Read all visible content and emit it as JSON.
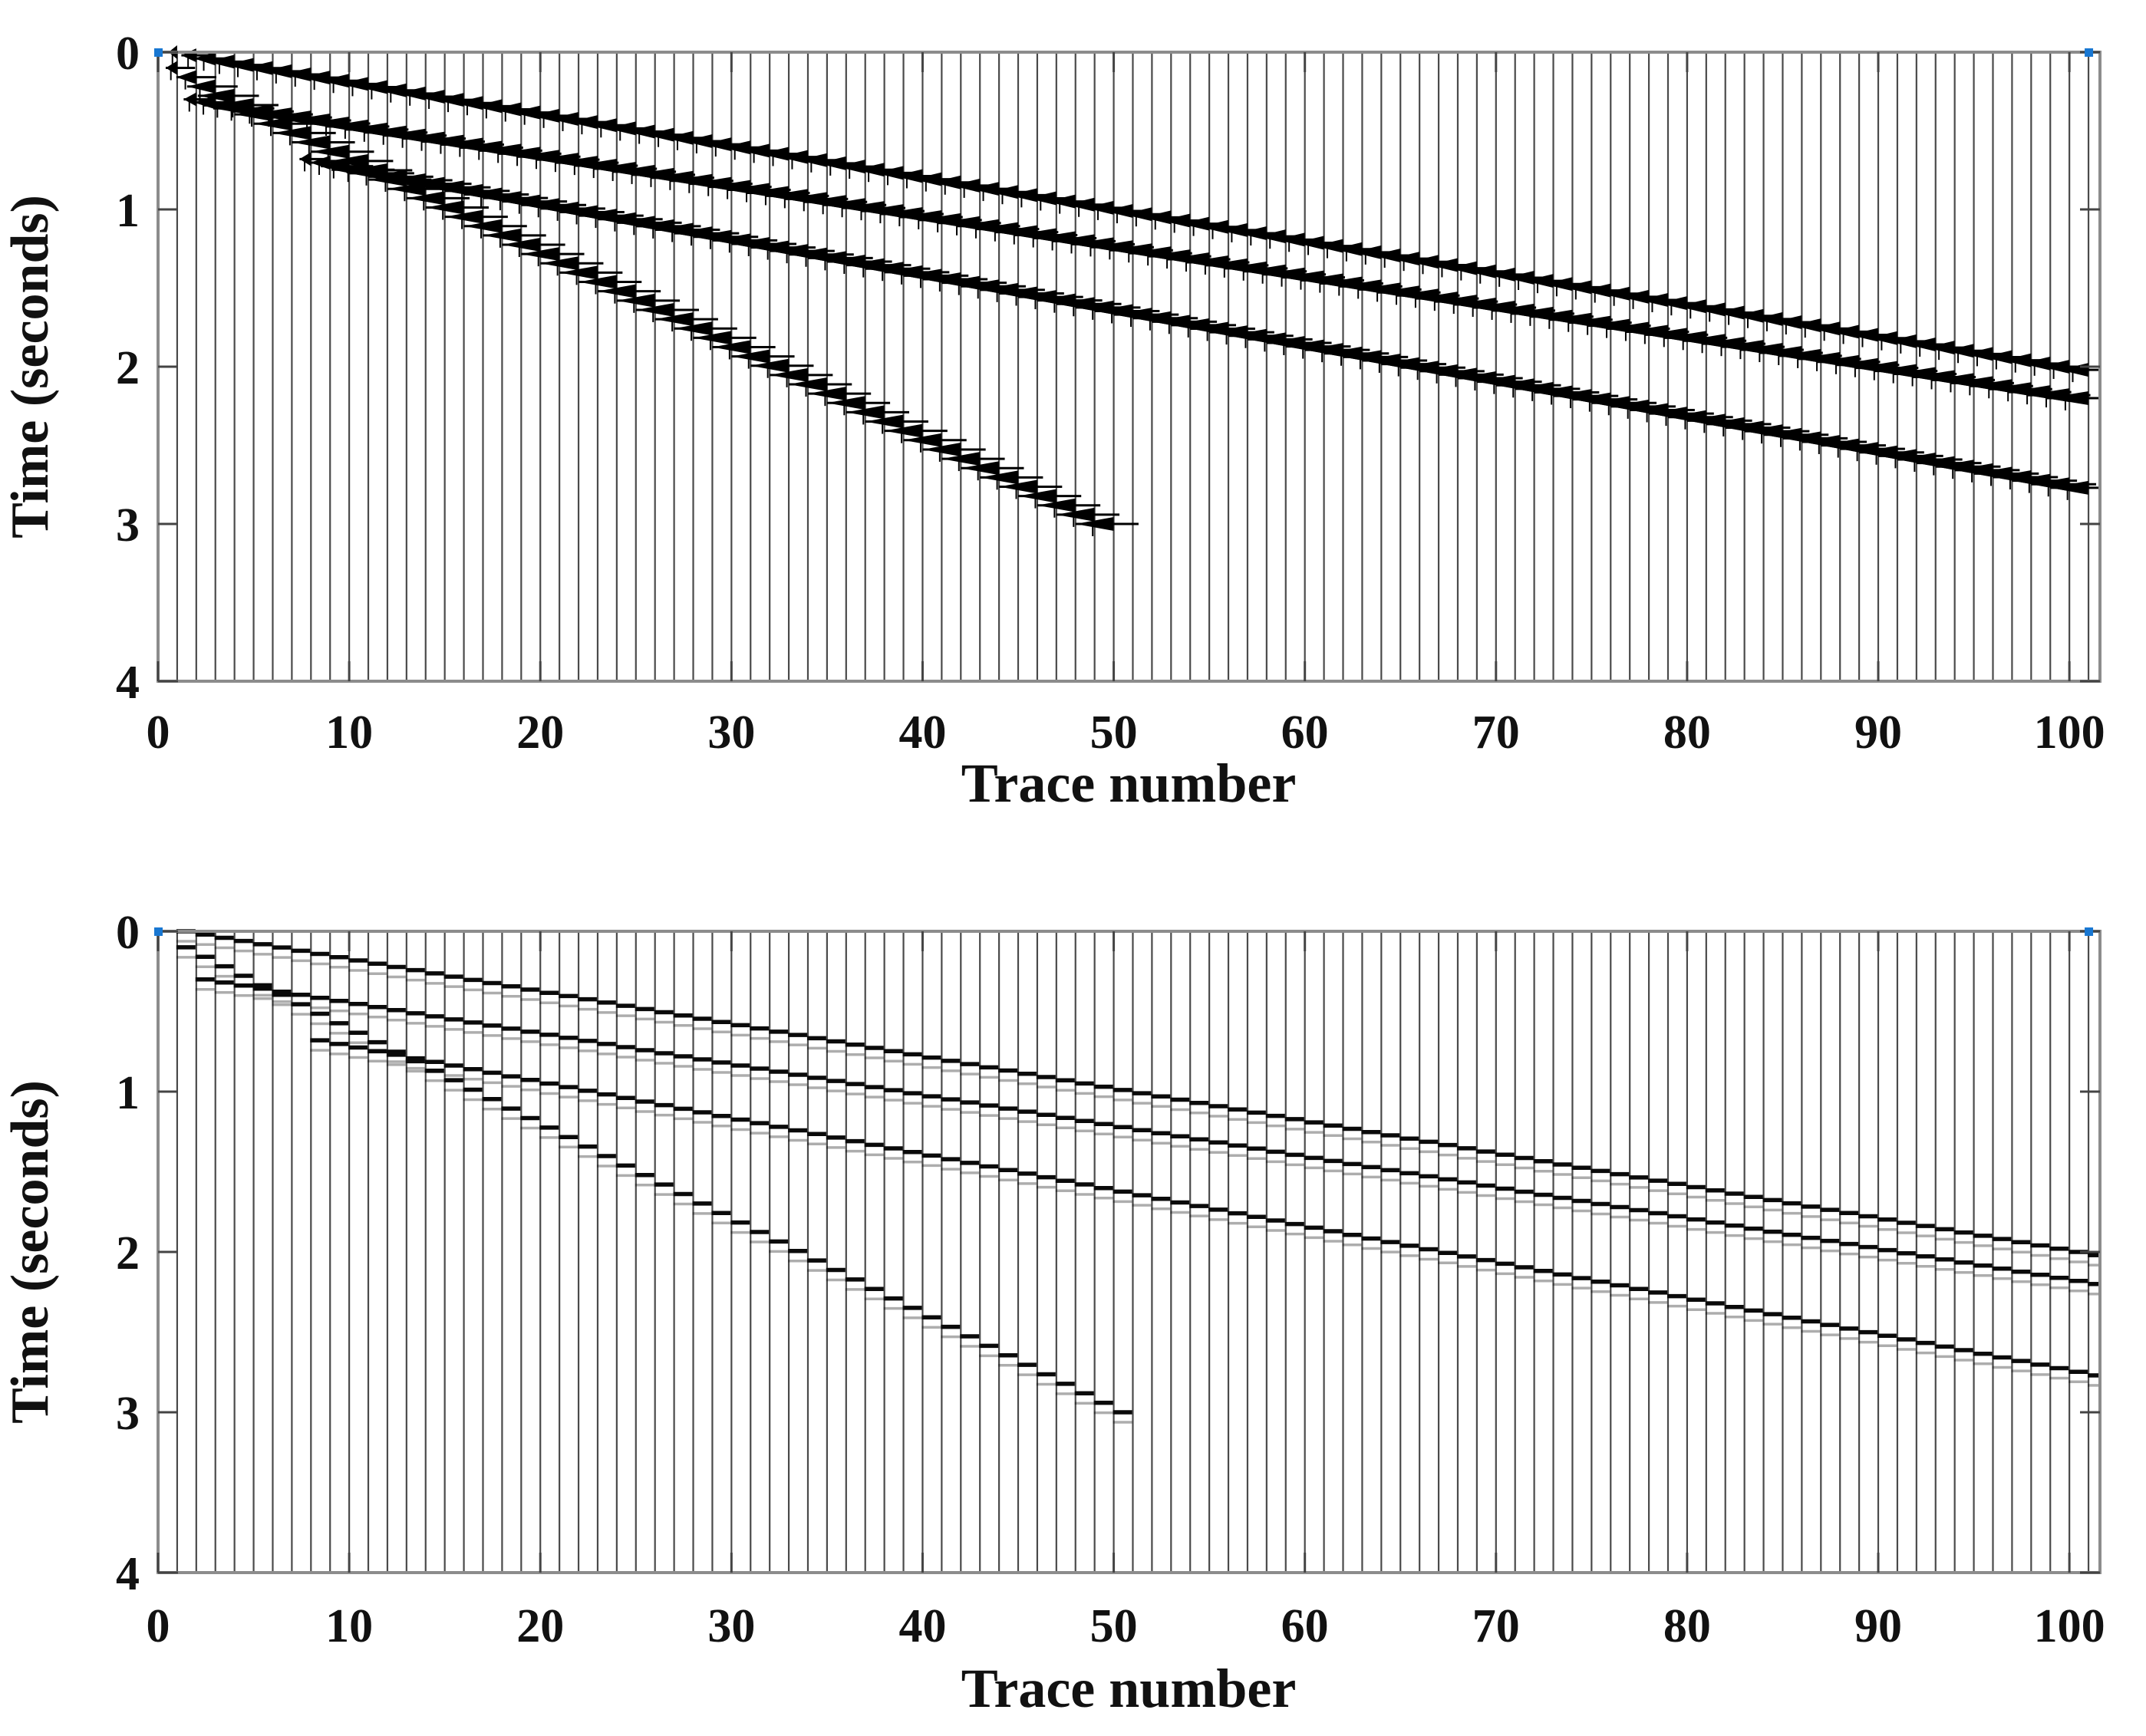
{
  "figure": {
    "background": "#ffffff",
    "axes_box_color": "#8c8c8c",
    "trace_line_color": "#4a4a4a",
    "wiggle_color": "#000000",
    "tick_color": "#444444",
    "corner_marker_color": "#1877d2",
    "corner_marker_traces": [
      1,
      101
    ]
  },
  "chart_data": [
    {
      "type": "line",
      "variant": "seismic-wiggle-filled-traces",
      "title": "",
      "xlabel": "Trace number",
      "ylabel": "Time (seconds)",
      "xlim": [
        0,
        101.6
      ],
      "ylim": [
        0,
        4
      ],
      "y_axis_downward": true,
      "n_traces": 101,
      "xticks": [
        0,
        10,
        20,
        30,
        40,
        50,
        60,
        70,
        80,
        90,
        100
      ],
      "yticks": [
        0,
        1,
        2,
        3,
        4
      ],
      "grid": false,
      "legend": "none",
      "events": [
        {
          "name": "linear-event-1",
          "trace_start": 1,
          "time_start": 0.0,
          "trace_end": 101,
          "time_end": 2.02,
          "amplitude": 1.5,
          "whisker_right": 0.9
        },
        {
          "name": "linear-event-2",
          "trace_start": 2,
          "time_start": 0.3,
          "trace_end": 101,
          "time_end": 2.2,
          "amplitude": 2.2,
          "whisker_right": 1.1
        },
        {
          "name": "linear-event-3",
          "trace_start": 8,
          "time_start": 0.68,
          "trace_end": 101,
          "time_end": 2.77,
          "amplitude": 2.0,
          "whisker_right": 1.4
        },
        {
          "name": "linear-event-4-steep",
          "trace_start": 1,
          "time_start": 0.1,
          "trace_end": 50,
          "time_end": 3.0,
          "amplitude": 2.0,
          "whisker_right": 1.3
        }
      ]
    },
    {
      "type": "line",
      "variant": "seismic-stairstep-dashes",
      "title": "",
      "xlabel": "Trace number",
      "ylabel": "Time (seconds)",
      "xlim": [
        0,
        101.6
      ],
      "ylim": [
        0,
        4
      ],
      "y_axis_downward": true,
      "n_traces": 101,
      "xticks": [
        0,
        10,
        20,
        30,
        40,
        50,
        60,
        70,
        80,
        90,
        100
      ],
      "yticks": [
        0,
        1,
        2,
        3,
        4
      ],
      "grid": false,
      "legend": "none",
      "events": [
        {
          "name": "linear-event-1",
          "trace_start": 1,
          "time_start": 0.0,
          "trace_end": 101,
          "time_end": 2.02
        },
        {
          "name": "linear-event-2",
          "trace_start": 2,
          "time_start": 0.3,
          "trace_end": 101,
          "time_end": 2.2
        },
        {
          "name": "linear-event-3",
          "trace_start": 8,
          "time_start": 0.68,
          "trace_end": 101,
          "time_end": 2.77
        },
        {
          "name": "linear-event-4-steep",
          "trace_start": 1,
          "time_start": 0.1,
          "trace_end": 50,
          "time_end": 3.0
        }
      ]
    }
  ]
}
